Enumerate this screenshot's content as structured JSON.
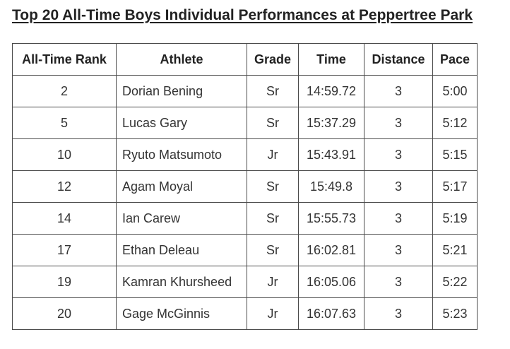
{
  "page": {
    "title": "Top 20 All-Time Boys Individual Performances at Peppertree Park"
  },
  "table": {
    "columns": [
      "All-Time Rank",
      "Athlete",
      "Grade",
      "Time",
      "Distance",
      "Pace"
    ],
    "rows": [
      [
        "2",
        "Dorian Bening",
        "Sr",
        "14:59.72",
        "3",
        "5:00"
      ],
      [
        "5",
        "Lucas Gary",
        "Sr",
        "15:37.29",
        "3",
        "5:12"
      ],
      [
        "10",
        "Ryuto Matsumoto",
        "Jr",
        "15:43.91",
        "3",
        "5:15"
      ],
      [
        "12",
        "Agam Moyal",
        "Sr",
        "15:49.8",
        "3",
        "5:17"
      ],
      [
        "14",
        "Ian Carew",
        "Sr",
        "15:55.73",
        "3",
        "5:19"
      ],
      [
        "17",
        "Ethan Deleau",
        "Sr",
        "16:02.81",
        "3",
        "5:21"
      ],
      [
        "19",
        "Kamran Khursheed",
        "Jr",
        "16:05.06",
        "3",
        "5:22"
      ],
      [
        "20",
        "Gage McGinnis",
        "Jr",
        "16:07.63",
        "3",
        "5:23"
      ]
    ]
  },
  "colors": {
    "text": "#222222",
    "border": "#4a4a4a",
    "background": "#ffffff"
  }
}
